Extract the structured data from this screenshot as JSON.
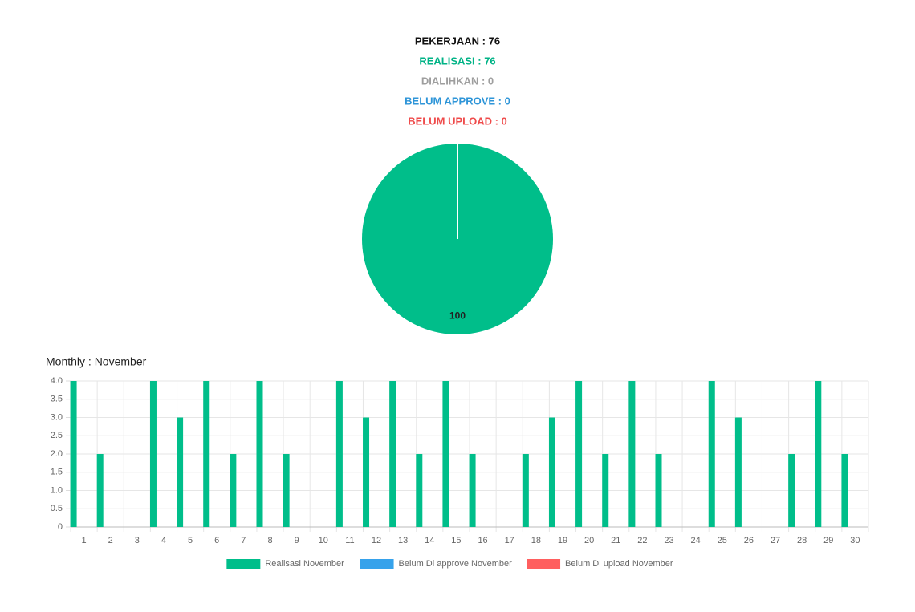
{
  "summary": [
    {
      "text": "PEKERJAAN : 76",
      "color": "#111111"
    },
    {
      "text": "REALISASI : 76",
      "color": "#00b386"
    },
    {
      "text": "DIALIHKAN : 0",
      "color": "#9e9e9e"
    },
    {
      "text": "BELUM APPROVE : 0",
      "color": "#2e95d8"
    },
    {
      "text": "BELUM UPLOAD : 0",
      "color": "#ef4b4b"
    }
  ],
  "chart_data": [
    {
      "type": "pie",
      "values": [
        100
      ],
      "colors": [
        "#00be8a"
      ]
    },
    {
      "type": "bar",
      "title": "Monthly : November",
      "categories": [
        "1",
        "2",
        "3",
        "4",
        "5",
        "6",
        "7",
        "8",
        "9",
        "10",
        "11",
        "12",
        "13",
        "14",
        "15",
        "16",
        "17",
        "18",
        "19",
        "20",
        "21",
        "22",
        "23",
        "24",
        "25",
        "26",
        "27",
        "28",
        "29",
        "30"
      ],
      "series": [
        {
          "name": "Realisasi November",
          "color": "#00be8a",
          "values": [
            4,
            2,
            0,
            4,
            3,
            4,
            2,
            4,
            2,
            0,
            4,
            3,
            4,
            2,
            4,
            2,
            0,
            2,
            3,
            4,
            2,
            4,
            2,
            0,
            4,
            3,
            0,
            2,
            4,
            2
          ]
        },
        {
          "name": "Belum Di approve November",
          "color": "#36a2eb",
          "values": [
            0,
            0,
            0,
            0,
            0,
            0,
            0,
            0,
            0,
            0,
            0,
            0,
            0,
            0,
            0,
            0,
            0,
            0,
            0,
            0,
            0,
            0,
            0,
            0,
            0,
            0,
            0,
            0,
            0,
            0
          ]
        },
        {
          "name": "Belum Di upload November",
          "color": "#ff5f5f",
          "values": [
            0,
            0,
            0,
            0,
            0,
            0,
            0,
            0,
            0,
            0,
            0,
            0,
            0,
            0,
            0,
            0,
            0,
            0,
            0,
            0,
            0,
            0,
            0,
            0,
            0,
            0,
            0,
            0,
            0,
            0
          ]
        }
      ],
      "ylim": [
        0,
        4
      ],
      "yticks": [
        0,
        {
          "value": 0.5,
          "label": "0.5"
        },
        {
          "value": 1,
          "label": "1.0"
        },
        {
          "value": 1.5,
          "label": "1.5"
        },
        {
          "value": 2,
          "label": "2.0"
        },
        {
          "value": 2.5,
          "label": "2.5"
        },
        {
          "value": 3,
          "label": "3.0"
        },
        {
          "value": 3.5,
          "label": "3.5"
        },
        {
          "value": 4,
          "label": "4.0"
        }
      ],
      "grid": true
    }
  ]
}
